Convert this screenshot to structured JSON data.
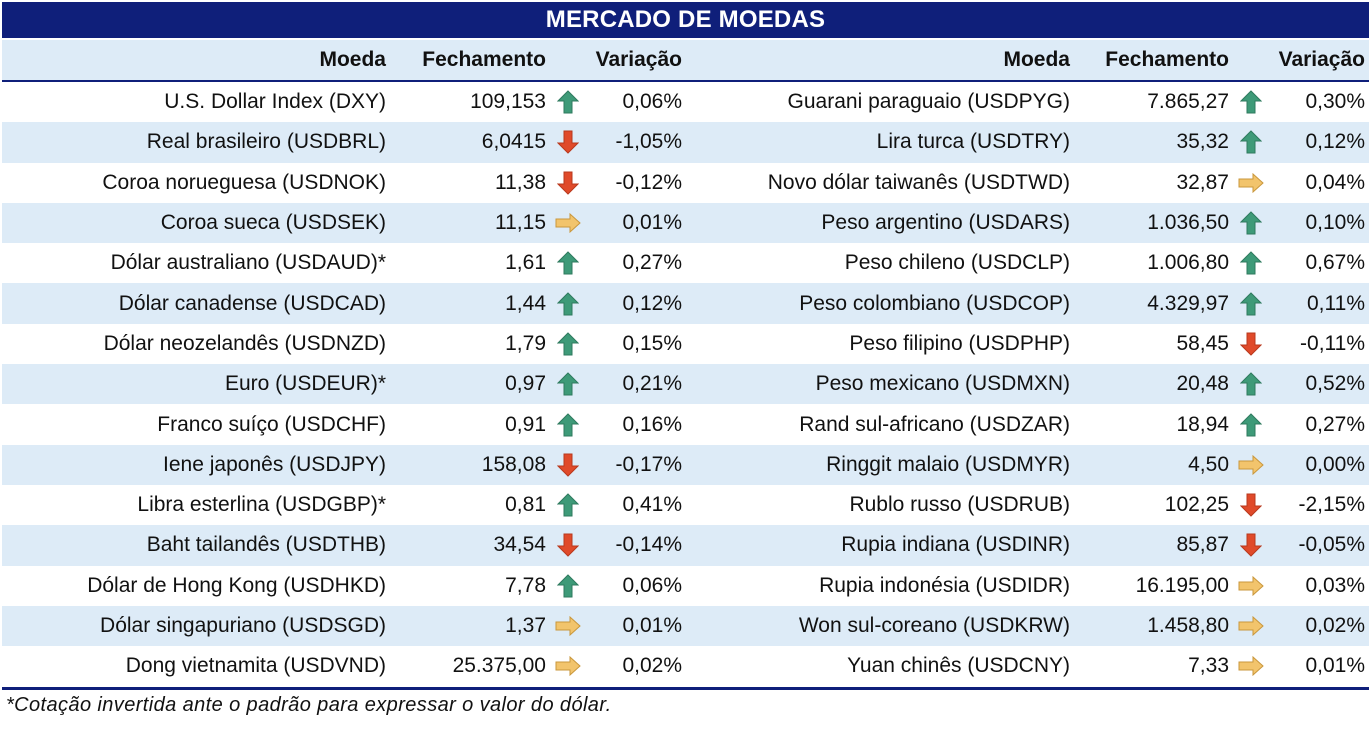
{
  "title": "MERCADO DE MOEDAS",
  "columns": {
    "currency": "Moeda",
    "close": "Fechamento",
    "change": "Variação"
  },
  "colors": {
    "header_bg": "#0f1f7a",
    "band": "#ddebf7",
    "up": "#3e9a78",
    "down": "#e04a2a",
    "flat": "#f2c46c"
  },
  "left": [
    {
      "name": "U.S. Dollar Index (DXY)",
      "close": "109,153",
      "icon": "up-arrow-icon",
      "change": "0,06%"
    },
    {
      "name": "Real brasileiro (USDBRL)",
      "close": "6,0415",
      "icon": "down-arrow-icon",
      "change": "-1,05%"
    },
    {
      "name": "Coroa norueguesa (USDNOK)",
      "close": "11,38",
      "icon": "down-arrow-icon",
      "change": "-0,12%"
    },
    {
      "name": "Coroa sueca (USDSEK)",
      "close": "11,15",
      "icon": "right-arrow-icon",
      "change": "0,01%"
    },
    {
      "name": "Dólar australiano (USDAUD)*",
      "close": "1,61",
      "icon": "up-arrow-icon",
      "change": "0,27%"
    },
    {
      "name": "Dólar canadense (USDCAD)",
      "close": "1,44",
      "icon": "up-arrow-icon",
      "change": "0,12%"
    },
    {
      "name": "Dólar neozelandês (USDNZD)",
      "close": "1,79",
      "icon": "up-arrow-icon",
      "change": "0,15%"
    },
    {
      "name": "Euro (USDEUR)*",
      "close": "0,97",
      "icon": "up-arrow-icon",
      "change": "0,21%"
    },
    {
      "name": "Franco suíço (USDCHF)",
      "close": "0,91",
      "icon": "up-arrow-icon",
      "change": "0,16%"
    },
    {
      "name": "Iene japonês (USDJPY)",
      "close": "158,08",
      "icon": "down-arrow-icon",
      "change": "-0,17%"
    },
    {
      "name": "Libra esterlina (USDGBP)*",
      "close": "0,81",
      "icon": "up-arrow-icon",
      "change": "0,41%"
    },
    {
      "name": "Baht tailandês (USDTHB)",
      "close": "34,54",
      "icon": "down-arrow-icon",
      "change": "-0,14%"
    },
    {
      "name": "Dólar de Hong Kong (USDHKD)",
      "close": "7,78",
      "icon": "up-arrow-icon",
      "change": "0,06%"
    },
    {
      "name": "Dólar singapuriano (USDSGD)",
      "close": "1,37",
      "icon": "right-arrow-icon",
      "change": "0,01%"
    },
    {
      "name": "Dong vietnamita (USDVND)",
      "close": "25.375,00",
      "icon": "right-arrow-icon",
      "change": "0,02%"
    }
  ],
  "right": [
    {
      "name": "Guarani paraguaio (USDPYG)",
      "close": "7.865,27",
      "icon": "up-arrow-icon",
      "change": "0,30%"
    },
    {
      "name": "Lira turca (USDTRY)",
      "close": "35,32",
      "icon": "up-arrow-icon",
      "change": "0,12%"
    },
    {
      "name": "Novo dólar taiwanês (USDTWD)",
      "close": "32,87",
      "icon": "right-arrow-icon",
      "change": "0,04%"
    },
    {
      "name": "Peso argentino (USDARS)",
      "close": "1.036,50",
      "icon": "up-arrow-icon",
      "change": "0,10%"
    },
    {
      "name": "Peso chileno (USDCLP)",
      "close": "1.006,80",
      "icon": "up-arrow-icon",
      "change": "0,67%"
    },
    {
      "name": "Peso colombiano (USDCOP)",
      "close": "4.329,97",
      "icon": "up-arrow-icon",
      "change": "0,11%"
    },
    {
      "name": "Peso filipino (USDPHP)",
      "close": "58,45",
      "icon": "down-arrow-icon",
      "change": "-0,11%"
    },
    {
      "name": "Peso mexicano (USDMXN)",
      "close": "20,48",
      "icon": "up-arrow-icon",
      "change": "0,52%"
    },
    {
      "name": "Rand sul-africano (USDZAR)",
      "close": "18,94",
      "icon": "up-arrow-icon",
      "change": "0,27%"
    },
    {
      "name": "Ringgit malaio (USDMYR)",
      "close": "4,50",
      "icon": "right-arrow-icon",
      "change": "0,00%"
    },
    {
      "name": "Rublo russo (USDRUB)",
      "close": "102,25",
      "icon": "down-arrow-icon",
      "change": "-2,15%"
    },
    {
      "name": "Rupia indiana (USDINR)",
      "close": "85,87",
      "icon": "down-arrow-icon",
      "change": "-0,05%"
    },
    {
      "name": "Rupia indonésia (USDIDR)",
      "close": "16.195,00",
      "icon": "right-arrow-icon",
      "change": "0,03%"
    },
    {
      "name": "Won sul-coreano (USDKRW)",
      "close": "1.458,80",
      "icon": "right-arrow-icon",
      "change": "0,02%"
    },
    {
      "name": "Yuan chinês (USDCNY)",
      "close": "7,33",
      "icon": "right-arrow-icon",
      "change": "0,01%"
    }
  ],
  "footnote": "*Cotação invertida ante o padrão para expressar o valor do dólar."
}
